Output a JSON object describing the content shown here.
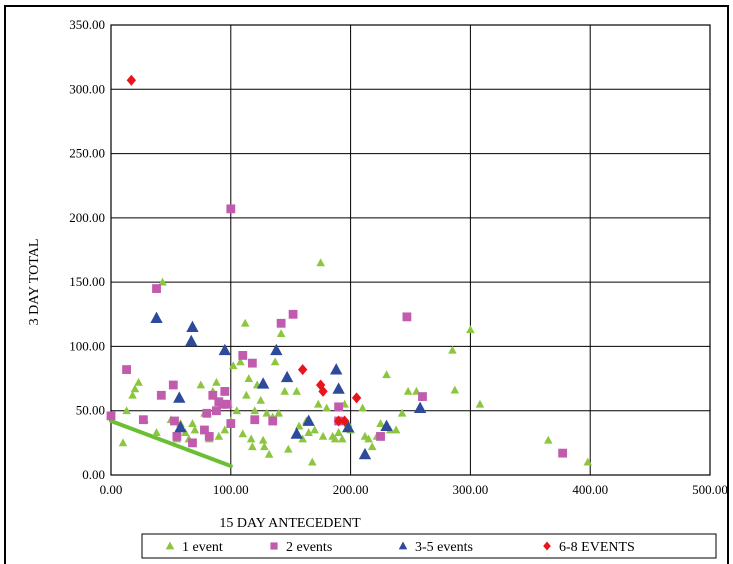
{
  "chart_data": {
    "type": "scatter",
    "title": "",
    "xlabel": "15 DAY ANTECEDENT",
    "ylabel": "3 DAY TOTAL",
    "xlim": [
      0,
      500
    ],
    "ylim": [
      0,
      350
    ],
    "xticks": [
      0,
      100,
      200,
      300,
      400,
      500
    ],
    "yticks": [
      0,
      50,
      100,
      150,
      200,
      250,
      300,
      350
    ],
    "xtick_labels": [
      "0.00",
      "100.00",
      "200.00",
      "300.00",
      "400.00",
      "500.00"
    ],
    "ytick_labels": [
      "0.00",
      "50.00",
      "100.00",
      "150.00",
      "200.00",
      "250.00",
      "300.00",
      "350.00"
    ],
    "grid": true,
    "legend_position": "bottom",
    "series": [
      {
        "name": "1 event",
        "marker": "triangle",
        "color": "#8CC63F",
        "points": [
          [
            10,
            25
          ],
          [
            13,
            50
          ],
          [
            18,
            62
          ],
          [
            20,
            67
          ],
          [
            23,
            72
          ],
          [
            28,
            43
          ],
          [
            38,
            33
          ],
          [
            43,
            150
          ],
          [
            50,
            43
          ],
          [
            55,
            28
          ],
          [
            58,
            40
          ],
          [
            62,
            33
          ],
          [
            65,
            28
          ],
          [
            68,
            40
          ],
          [
            70,
            35
          ],
          [
            75,
            70
          ],
          [
            78,
            48
          ],
          [
            82,
            28
          ],
          [
            85,
            65
          ],
          [
            88,
            72
          ],
          [
            90,
            30
          ],
          [
            95,
            35
          ],
          [
            98,
            55
          ],
          [
            100,
            42
          ],
          [
            102,
            85
          ],
          [
            105,
            50
          ],
          [
            108,
            88
          ],
          [
            110,
            32
          ],
          [
            112,
            118
          ],
          [
            113,
            62
          ],
          [
            115,
            75
          ],
          [
            117,
            28
          ],
          [
            118,
            22
          ],
          [
            120,
            50
          ],
          [
            122,
            70
          ],
          [
            125,
            58
          ],
          [
            127,
            27
          ],
          [
            128,
            22
          ],
          [
            130,
            48
          ],
          [
            132,
            16
          ],
          [
            135,
            45
          ],
          [
            137,
            88
          ],
          [
            140,
            48
          ],
          [
            142,
            110
          ],
          [
            145,
            65
          ],
          [
            148,
            20
          ],
          [
            155,
            65
          ],
          [
            157,
            38
          ],
          [
            160,
            28
          ],
          [
            163,
            42
          ],
          [
            165,
            33
          ],
          [
            168,
            10
          ],
          [
            170,
            35
          ],
          [
            173,
            55
          ],
          [
            175,
            165
          ],
          [
            177,
            30
          ],
          [
            180,
            52
          ],
          [
            185,
            30
          ],
          [
            187,
            28
          ],
          [
            190,
            33
          ],
          [
            193,
            28
          ],
          [
            195,
            55
          ],
          [
            198,
            40
          ],
          [
            200,
            35
          ],
          [
            210,
            52
          ],
          [
            212,
            30
          ],
          [
            215,
            28
          ],
          [
            218,
            22
          ],
          [
            222,
            30
          ],
          [
            225,
            40
          ],
          [
            230,
            78
          ],
          [
            233,
            35
          ],
          [
            238,
            35
          ],
          [
            243,
            48
          ],
          [
            248,
            65
          ],
          [
            255,
            65
          ],
          [
            285,
            97
          ],
          [
            287,
            66
          ],
          [
            300,
            113
          ],
          [
            308,
            55
          ],
          [
            365,
            27
          ],
          [
            398,
            10
          ]
        ]
      },
      {
        "name": "2 events",
        "marker": "square",
        "color": "#C05BAD",
        "points": [
          [
            0,
            46
          ],
          [
            13,
            82
          ],
          [
            27,
            43
          ],
          [
            38,
            145
          ],
          [
            42,
            62
          ],
          [
            52,
            70
          ],
          [
            53,
            42
          ],
          [
            55,
            30
          ],
          [
            68,
            25
          ],
          [
            78,
            35
          ],
          [
            80,
            48
          ],
          [
            82,
            30
          ],
          [
            85,
            62
          ],
          [
            88,
            50
          ],
          [
            90,
            57
          ],
          [
            93,
            55
          ],
          [
            95,
            65
          ],
          [
            97,
            55
          ],
          [
            100,
            207
          ],
          [
            100,
            40
          ],
          [
            110,
            93
          ],
          [
            118,
            87
          ],
          [
            120,
            43
          ],
          [
            135,
            42
          ],
          [
            142,
            118
          ],
          [
            152,
            125
          ],
          [
            190,
            53
          ],
          [
            190,
            42
          ],
          [
            225,
            30
          ],
          [
            247,
            123
          ],
          [
            260,
            61
          ],
          [
            377,
            17
          ]
        ]
      },
      {
        "name": "3-5 events",
        "marker": "triangle",
        "color": "#2E4B9B",
        "points": [
          [
            38,
            122
          ],
          [
            57,
            60
          ],
          [
            58,
            37
          ],
          [
            67,
            104
          ],
          [
            68,
            115
          ],
          [
            95,
            97
          ],
          [
            127,
            71
          ],
          [
            138,
            97
          ],
          [
            147,
            76
          ],
          [
            155,
            32
          ],
          [
            165,
            42
          ],
          [
            188,
            82
          ],
          [
            190,
            67
          ],
          [
            198,
            37
          ],
          [
            212,
            16
          ],
          [
            230,
            38
          ],
          [
            258,
            52
          ]
        ]
      },
      {
        "name": "6-8 EVENTS",
        "marker": "diamond",
        "color": "#E8151C",
        "points": [
          [
            17,
            307
          ],
          [
            160,
            82
          ],
          [
            175,
            70
          ],
          [
            177,
            65
          ],
          [
            190,
            42
          ],
          [
            195,
            42
          ],
          [
            205,
            60
          ]
        ]
      }
    ],
    "trendline": {
      "color": "#6CBE34",
      "points": [
        [
          0,
          42
        ],
        [
          100,
          7
        ]
      ]
    }
  }
}
